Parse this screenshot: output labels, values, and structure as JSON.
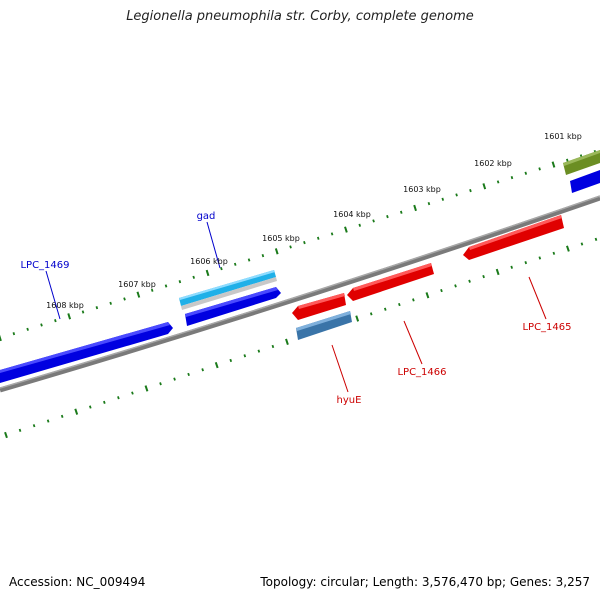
{
  "title": "Legionella pneumophila str. Corby, complete genome",
  "footer": {
    "accession": "Accession: NC_009494",
    "stats": "Topology: circular; Length: 3,576,470 bp; Genes: 3,257"
  },
  "tick_labels": [
    "1601 kbp",
    "1602 kbp",
    "1603 kbp",
    "1604 kbp",
    "1605 kbp",
    "1606 kbp",
    "1607 kbp",
    "1608 kbp"
  ],
  "gene_labels": {
    "gad": "gad",
    "lpc1469": "LPC_1469",
    "lpc1465": "LPC_1465",
    "lpc1466": "LPC_1466",
    "hyue": "hyuE"
  },
  "colors": {
    "forward_gene": "#0000e0",
    "reverse_gene": "#e00000",
    "gad_gene": "#1fb0e8",
    "hyue_gene": "#3a74a8",
    "olive_gene": "#6b8e23",
    "backbone": "#808080",
    "tick": "#1a7a1a"
  }
}
